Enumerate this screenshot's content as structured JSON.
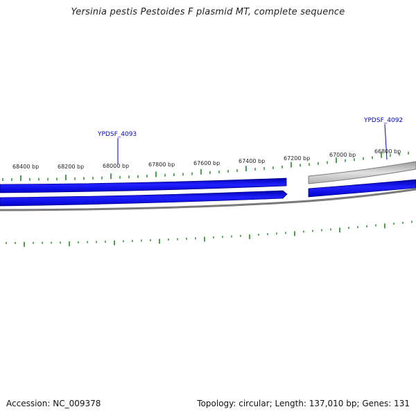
{
  "title": "Yersinia pestis Pestoides F plasmid MT, complete sequence",
  "footer": {
    "accession": "Accession: NC_009378",
    "summary": "Topology: circular; Length: 137,010 bp; Genes: 131"
  },
  "gene_labels": [
    "YPDSF_4093",
    "YPDSF_4092"
  ],
  "scale_labels": [
    "68400 bp",
    "68200 bp",
    "68000 bp",
    "67800 bp",
    "67600 bp",
    "67400 bp",
    "67200 bp",
    "67000 bp",
    "66800 bp"
  ],
  "colors": {
    "gene_fill": "#0000ee",
    "backbone": "#808080",
    "gray_feature": "#c8c8c8",
    "tick": "#1a8a1a",
    "gene_label": "#0000cc"
  }
}
